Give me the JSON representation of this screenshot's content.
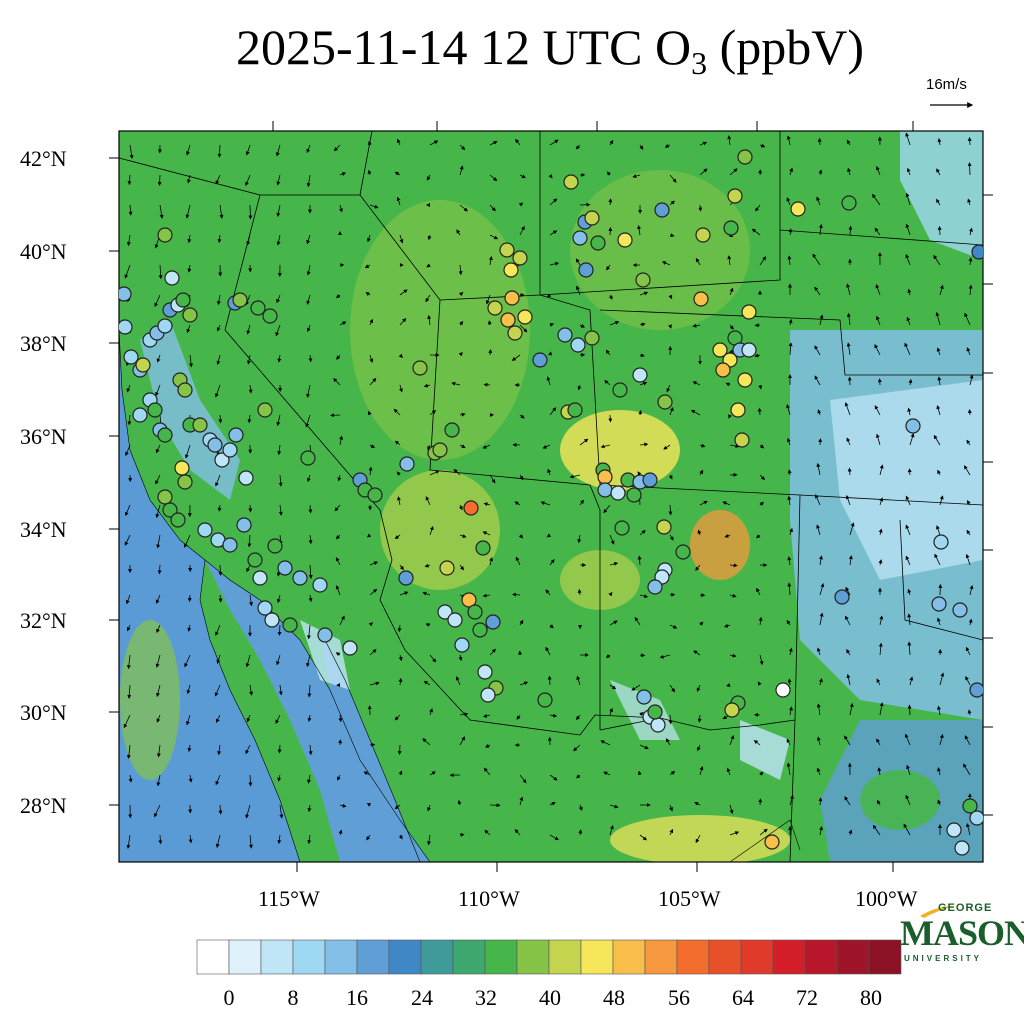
{
  "title": {
    "main": "2025-11-14 12 UTC O",
    "subscript": "3",
    "suffix": " (ppbV)"
  },
  "vector_reference": "16m/s",
  "lat_labels": [
    "42°N",
    "40°N",
    "38°N",
    "36°N",
    "34°N",
    "32°N",
    "30°N",
    "28°N"
  ],
  "lon_labels": [
    "115°W",
    "110°W",
    "105°W",
    "100°W"
  ],
  "colorbar": {
    "labels": [
      "0",
      "8",
      "16",
      "24",
      "32",
      "40",
      "48",
      "56",
      "64",
      "72",
      "80"
    ],
    "colors": [
      "#ffffff",
      "#dff2fb",
      "#bfe5f7",
      "#9fd8f3",
      "#83bfe6",
      "#5f9fd6",
      "#3f88c5",
      "#3f9a9a",
      "#3fa86e",
      "#46b64a",
      "#86c448",
      "#c4d44f",
      "#f6e65a",
      "#f8c04a",
      "#f6983e",
      "#f26d2e",
      "#e8502a",
      "#df3a2a",
      "#d41e2a",
      "#b8162a",
      "#9e1428",
      "#8a1224"
    ]
  },
  "logo": {
    "line1": "GEORGE",
    "line2": "MASON",
    "line3": "UNIVERSITY"
  },
  "colors": {
    "background_ocean": "#5b9bd5",
    "land_base": "#46b64a"
  }
}
